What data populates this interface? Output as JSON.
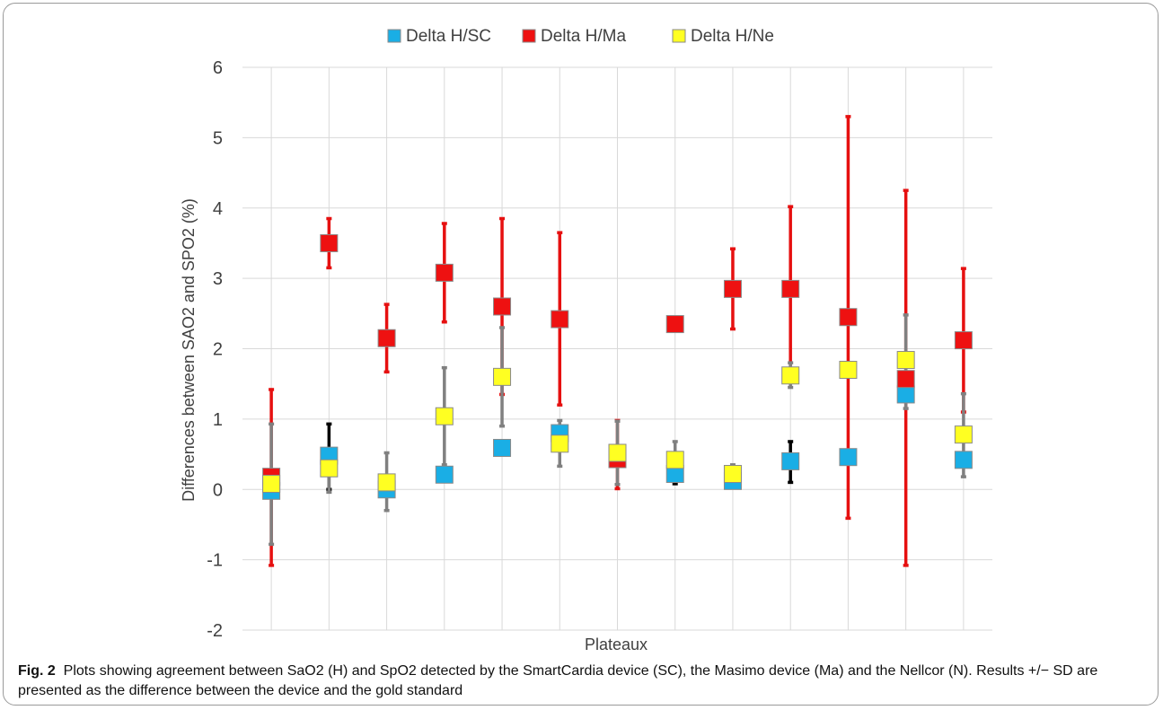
{
  "figure": {
    "label": "Fig. 2",
    "caption": "Plots showing agreement between SaO2 (H) and SpO2 detected by the SmartCardia device (SC), the Masimo device (Ma) and the Nellcor (N). Results +/− SD are presented as the difference between the device and the gold standard"
  },
  "chart_data": {
    "type": "scatter",
    "title": "",
    "xlabel": "Plateaux",
    "ylabel": "Differences between SAO2 and SPO2 (%)",
    "ylim": [
      -2,
      6
    ],
    "yticks": [
      "-2",
      "-1",
      "0",
      "1",
      "2",
      "3",
      "4",
      "5",
      "6"
    ],
    "x": [
      1,
      2,
      3,
      4,
      5,
      6,
      7,
      8,
      9,
      10,
      11,
      12,
      13
    ],
    "grid": "vertical and horizontal",
    "legend_position": "top",
    "series": [
      {
        "name": "Delta H/SC",
        "color": "#1aaee5",
        "values": [
          -0.02,
          0.48,
          0.0,
          0.21,
          0.59,
          0.8,
          null,
          0.22,
          0.12,
          0.4,
          0.46,
          1.35,
          0.42
        ],
        "err_low": [
          null,
          0.0,
          null,
          null,
          null,
          null,
          null,
          0.08,
          null,
          0.1,
          null,
          null,
          null
        ],
        "err_high": [
          null,
          0.93,
          null,
          null,
          null,
          null,
          null,
          0.35,
          null,
          0.68,
          null,
          null,
          null
        ],
        "err_color": "#000000"
      },
      {
        "name": "Delta H/Ma",
        "color": "#ee1111",
        "values": [
          0.18,
          3.5,
          2.15,
          3.08,
          2.6,
          2.42,
          0.43,
          2.35,
          2.85,
          2.85,
          2.45,
          1.57,
          2.12
        ],
        "err_low": [
          -1.08,
          3.15,
          1.67,
          2.38,
          1.35,
          1.2,
          0.01,
          null,
          2.28,
          1.7,
          -0.41,
          -1.08,
          1.1
        ],
        "err_high": [
          1.42,
          3.85,
          2.63,
          3.78,
          3.85,
          3.65,
          0.98,
          null,
          3.42,
          4.02,
          5.3,
          4.25,
          3.14
        ],
        "err_color": "#e61010"
      },
      {
        "name": "Delta H/Ne",
        "color": "#ffff22",
        "values": [
          0.08,
          0.3,
          0.1,
          1.04,
          1.6,
          0.65,
          0.52,
          0.42,
          0.22,
          1.62,
          1.7,
          1.84,
          0.78
        ],
        "err_low": [
          -0.78,
          -0.04,
          -0.3,
          0.35,
          0.9,
          0.33,
          0.07,
          null,
          null,
          1.45,
          null,
          1.15,
          0.18
        ],
        "err_high": [
          0.93,
          0.58,
          0.52,
          1.73,
          2.3,
          0.98,
          0.97,
          0.68,
          0.35,
          1.8,
          null,
          2.48,
          1.36
        ],
        "err_color": "#808080"
      }
    ]
  }
}
